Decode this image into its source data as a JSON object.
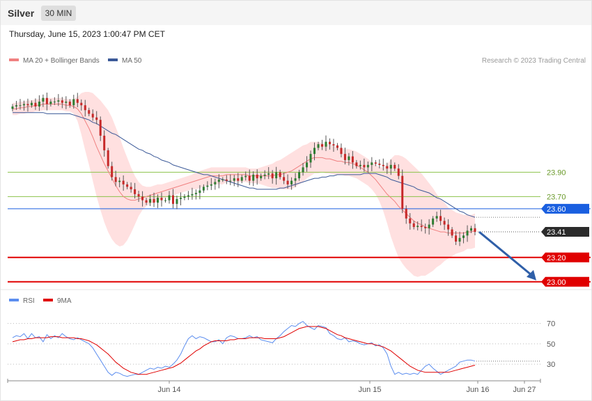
{
  "header": {
    "instrument": "Silver",
    "timeframe": "30 MIN",
    "datetime": "Thursday, June 15, 2023 1:00:47 PM CET"
  },
  "legend": {
    "ma20": "MA 20 + Bollinger Bands",
    "ma50": "MA 50",
    "credit": "Research © 2023 Trading Central"
  },
  "rsi_legend": {
    "rsi": "RSI",
    "ma9": "9MA"
  },
  "colors": {
    "ma20": "#f08080",
    "ma50": "#3b5998",
    "bands": "#ffd6d6",
    "up": "#2e7d32",
    "down": "#c62828",
    "support": "#e00000",
    "pivot": "#1a5fe0",
    "green_level": "#8bc34a",
    "rsi": "#5b8def",
    "rsi_ma": "#e00000",
    "arrow": "#2f5fa8"
  },
  "chart_data": [
    {
      "type": "candlestick",
      "title": "Silver",
      "x_ticks": [
        "Jun 14",
        "Jun 15",
        "Jun 16",
        "Jun 27"
      ],
      "ylim": [
        22.97,
        24.8
      ],
      "price_levels": [
        {
          "value": 23.9,
          "label": "23.90",
          "style": "green"
        },
        {
          "value": 23.7,
          "label": "23.70",
          "style": "green"
        },
        {
          "value": 23.6,
          "label": "23.60",
          "style": "pivot"
        },
        {
          "value": 23.41,
          "label": "23.41",
          "style": "last"
        },
        {
          "value": 23.2,
          "label": "23.20",
          "style": "support"
        },
        {
          "value": 23.0,
          "label": "23.00",
          "style": "support"
        }
      ],
      "closes": [
        24.44,
        24.45,
        24.45,
        24.46,
        24.45,
        24.47,
        24.44,
        24.48,
        24.51,
        24.46,
        24.48,
        24.48,
        24.49,
        24.47,
        24.48,
        24.45,
        24.5,
        24.47,
        24.45,
        24.41,
        24.38,
        24.35,
        24.33,
        24.2,
        24.08,
        23.95,
        23.86,
        23.82,
        23.83,
        23.8,
        23.78,
        23.76,
        23.72,
        23.7,
        23.67,
        23.65,
        23.68,
        23.65,
        23.69,
        23.67,
        23.67,
        23.71,
        23.64,
        23.68,
        23.69,
        23.7,
        23.71,
        23.72,
        23.73,
        23.75,
        23.78,
        23.79,
        23.8,
        23.82,
        23.84,
        23.84,
        23.83,
        23.83,
        23.85,
        23.83,
        23.86,
        23.87,
        23.83,
        23.88,
        23.85,
        23.87,
        23.88,
        23.89,
        23.85,
        23.9,
        23.86,
        23.83,
        23.8,
        23.83,
        23.85,
        23.9,
        23.94,
        23.98,
        24.05,
        24.1,
        24.13,
        24.11,
        24.15,
        24.13,
        24.12,
        24.1,
        24.05,
        24.0,
        24.03,
        23.98,
        23.95,
        23.96,
        23.94,
        23.96,
        23.98,
        23.97,
        23.96,
        23.95,
        23.93,
        23.96,
        23.93,
        23.87,
        23.6,
        23.52,
        23.48,
        23.45,
        23.46,
        23.45,
        23.44,
        23.47,
        23.52,
        23.54,
        23.5,
        23.47,
        23.43,
        23.38,
        23.33,
        23.36,
        23.38,
        23.42,
        23.44,
        23.41
      ],
      "ma20": [
        24.42,
        24.42,
        24.43,
        24.43,
        24.44,
        24.44,
        24.45,
        24.45,
        24.46,
        24.46,
        24.46,
        24.46,
        24.46,
        24.46,
        24.45,
        24.45,
        24.44,
        24.42,
        24.38,
        24.32,
        24.26,
        24.19,
        24.11,
        24.04,
        23.97,
        23.91,
        23.85,
        23.79,
        23.74,
        23.7,
        23.68,
        23.67,
        23.67,
        23.68,
        23.69,
        23.7,
        23.71,
        23.72,
        23.73,
        23.74,
        23.75,
        23.76,
        23.77,
        23.78,
        23.79,
        23.8,
        23.81,
        23.82,
        23.83,
        23.84,
        23.85,
        23.86,
        23.87,
        23.87,
        23.87,
        23.87,
        23.88,
        23.88,
        23.88,
        23.88,
        23.88,
        23.88,
        23.87,
        23.87,
        23.87,
        23.87,
        23.87,
        23.87,
        23.87,
        23.88,
        23.88,
        23.89,
        23.9,
        23.91,
        23.93,
        23.95,
        23.97,
        23.99,
        24.01,
        24.02,
        24.02,
        24.02,
        24.01,
        24.01,
        24.0,
        23.99,
        23.99,
        23.98,
        23.98,
        23.97,
        23.96,
        23.94,
        23.92,
        23.9,
        23.87,
        23.84,
        23.8,
        23.76,
        23.72,
        23.69,
        23.66,
        23.62,
        23.59,
        23.56,
        23.53,
        23.5,
        23.48,
        23.47,
        23.45,
        23.44,
        23.43,
        23.42,
        23.41,
        23.41,
        23.4,
        23.4,
        23.4,
        23.4,
        23.4,
        23.41,
        23.41,
        23.42
      ],
      "bollinger_width": [
        0.05,
        0.05,
        0.05,
        0.05,
        0.05,
        0.05,
        0.05,
        0.05,
        0.05,
        0.05,
        0.05,
        0.05,
        0.05,
        0.05,
        0.05,
        0.05,
        0.06,
        0.1,
        0.17,
        0.24,
        0.3,
        0.36,
        0.41,
        0.45,
        0.48,
        0.5,
        0.5,
        0.48,
        0.45,
        0.4,
        0.34,
        0.27,
        0.2,
        0.14,
        0.1,
        0.08,
        0.07,
        0.07,
        0.07,
        0.06,
        0.06,
        0.06,
        0.06,
        0.06,
        0.06,
        0.06,
        0.06,
        0.06,
        0.07,
        0.07,
        0.07,
        0.07,
        0.07,
        0.07,
        0.07,
        0.07,
        0.06,
        0.06,
        0.06,
        0.06,
        0.06,
        0.06,
        0.06,
        0.06,
        0.06,
        0.07,
        0.08,
        0.09,
        0.1,
        0.11,
        0.12,
        0.13,
        0.14,
        0.15,
        0.15,
        0.15,
        0.15,
        0.14,
        0.14,
        0.13,
        0.13,
        0.12,
        0.12,
        0.12,
        0.12,
        0.11,
        0.11,
        0.11,
        0.11,
        0.11,
        0.11,
        0.11,
        0.11,
        0.11,
        0.11,
        0.12,
        0.14,
        0.18,
        0.24,
        0.32,
        0.38,
        0.42,
        0.44,
        0.45,
        0.45,
        0.45,
        0.44,
        0.42,
        0.4,
        0.37,
        0.34,
        0.3,
        0.27,
        0.24,
        0.21,
        0.19,
        0.17,
        0.16,
        0.15,
        0.14,
        0.14,
        0.14
      ],
      "ma50": [
        24.39,
        24.39,
        24.39,
        24.39,
        24.39,
        24.39,
        24.39,
        24.39,
        24.39,
        24.38,
        24.38,
        24.38,
        24.38,
        24.38,
        24.38,
        24.38,
        24.37,
        24.36,
        24.35,
        24.34,
        24.33,
        24.31,
        24.3,
        24.28,
        24.26,
        24.24,
        24.22,
        24.21,
        24.19,
        24.17,
        24.15,
        24.13,
        24.11,
        24.09,
        24.08,
        24.06,
        24.05,
        24.03,
        24.02,
        24.0,
        23.99,
        23.98,
        23.96,
        23.95,
        23.94,
        23.93,
        23.92,
        23.91,
        23.9,
        23.89,
        23.88,
        23.88,
        23.87,
        23.86,
        23.85,
        23.84,
        23.83,
        23.82,
        23.81,
        23.8,
        23.79,
        23.78,
        23.77,
        23.77,
        23.76,
        23.76,
        23.76,
        23.76,
        23.76,
        23.76,
        23.77,
        23.77,
        23.78,
        23.79,
        23.8,
        23.81,
        23.82,
        23.83,
        23.84,
        23.85,
        23.85,
        23.86,
        23.86,
        23.87,
        23.87,
        23.88,
        23.88,
        23.88,
        23.88,
        23.88,
        23.88,
        23.88,
        23.89,
        23.89,
        23.89,
        23.89,
        23.88,
        23.87,
        23.86,
        23.84,
        23.83,
        23.82,
        23.81,
        23.8,
        23.79,
        23.78,
        23.76,
        23.75,
        23.74,
        23.73,
        23.71,
        23.69,
        23.68,
        23.66,
        23.64,
        23.62,
        23.6,
        23.58,
        23.57,
        23.55,
        23.54,
        23.53
      ],
      "arrow": {
        "from": 23.41,
        "to": 23.0
      }
    },
    {
      "type": "line",
      "title": "RSI",
      "ylim": [
        15,
        80
      ],
      "y_ticks": [
        70,
        50,
        30
      ],
      "series": [
        {
          "name": "RSI",
          "values": [
            56,
            58,
            57,
            60,
            55,
            60,
            56,
            57,
            52,
            59,
            55,
            58,
            56,
            60,
            57,
            55,
            54,
            56,
            54,
            52,
            50,
            46,
            40,
            34,
            28,
            22,
            19,
            22,
            21,
            19,
            18,
            19,
            20,
            20,
            22,
            24,
            26,
            25,
            27,
            26,
            28,
            27,
            30,
            34,
            40,
            48,
            55,
            58,
            55,
            57,
            56,
            54,
            52,
            52,
            54,
            50,
            56,
            58,
            57,
            55,
            55,
            56,
            58,
            56,
            57,
            54,
            53,
            52,
            51,
            55,
            58,
            62,
            65,
            68,
            67,
            70,
            72,
            68,
            66,
            64,
            68,
            67,
            66,
            60,
            58,
            55,
            54,
            56,
            52,
            53,
            52,
            50,
            49,
            50,
            51,
            48,
            49,
            46,
            40,
            28,
            20,
            22,
            20,
            21,
            20,
            21,
            20,
            24,
            28,
            30,
            26,
            23,
            20,
            22,
            24,
            26,
            28,
            32,
            33,
            34,
            34,
            33
          ]
        },
        {
          "name": "9MA",
          "values": [
            52,
            53,
            54,
            54,
            55,
            55,
            56,
            56,
            56,
            56,
            57,
            57,
            57,
            56,
            56,
            56,
            56,
            55,
            55,
            54,
            53,
            51,
            49,
            46,
            43,
            40,
            36,
            32,
            29,
            26,
            24,
            22,
            21,
            20,
            20,
            20,
            21,
            22,
            23,
            24,
            25,
            26,
            27,
            29,
            31,
            34,
            37,
            40,
            43,
            45,
            48,
            50,
            52,
            53,
            53,
            53,
            53,
            54,
            54,
            55,
            55,
            55,
            56,
            56,
            56,
            56,
            55,
            55,
            55,
            55,
            56,
            57,
            59,
            61,
            63,
            65,
            66,
            67,
            67,
            67,
            67,
            66,
            65,
            63,
            61,
            59,
            58,
            56,
            55,
            54,
            53,
            52,
            51,
            50,
            50,
            49,
            48,
            47,
            45,
            43,
            40,
            37,
            34,
            31,
            28,
            26,
            24,
            23,
            22,
            22,
            22,
            22,
            22,
            22,
            22,
            23,
            24,
            25,
            26,
            27,
            28,
            29
          ]
        }
      ]
    }
  ]
}
